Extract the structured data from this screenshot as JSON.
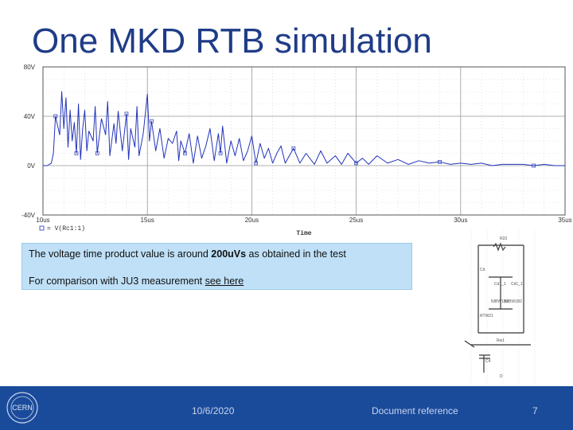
{
  "slide": {
    "title": "One MKD RTB simulation",
    "info": {
      "line1_prefix": "The voltage time product value is around ",
      "line1_bold": "200uVs",
      "line1_suffix": " as obtained in the test",
      "line2_prefix": "For comparison with JU3 measurement ",
      "line2_link": "see here"
    },
    "footer": {
      "logo_text": "CERN",
      "date": "10/6/2020",
      "document_reference": "Document reference",
      "page_number": "7"
    },
    "schematic": {
      "labels": [
        "R23",
        "Cd",
        "Cd1_1",
        "Cd1_1",
        "RTW21",
        "NIBW1B1",
        "NIBW1B2",
        "Rw1",
        "C4",
        "D"
      ]
    }
  },
  "chart_data": {
    "type": "line",
    "title": "",
    "xlabel": "Time",
    "ylabel": "",
    "x_unit": "us",
    "y_unit": "V",
    "xlim": [
      10,
      35
    ],
    "ylim": [
      -40,
      80
    ],
    "x_ticks": [
      "10us",
      "15us",
      "20us",
      "25us",
      "30us",
      "35us"
    ],
    "y_ticks": [
      "80V",
      "40V",
      "0V",
      "-40V"
    ],
    "legend": "V(Rc1:1)",
    "legend_position": "bottom-left",
    "grid": true,
    "line_color": "#2233bb",
    "series": [
      {
        "name": "V(Rc1:1)",
        "x": [
          10.0,
          10.2,
          10.4,
          10.5,
          10.6,
          10.8,
          10.9,
          11.0,
          11.1,
          11.2,
          11.3,
          11.4,
          11.5,
          11.6,
          11.7,
          11.8,
          11.9,
          12.0,
          12.1,
          12.2,
          12.4,
          12.5,
          12.6,
          12.8,
          13.0,
          13.1,
          13.2,
          13.4,
          13.5,
          13.6,
          13.8,
          14.0,
          14.1,
          14.2,
          14.4,
          14.5,
          14.6,
          14.8,
          15.0,
          15.1,
          15.2,
          15.4,
          15.6,
          15.8,
          16.0,
          16.2,
          16.4,
          16.5,
          16.6,
          16.8,
          17.0,
          17.2,
          17.4,
          17.6,
          17.8,
          18.0,
          18.2,
          18.4,
          18.5,
          18.6,
          18.8,
          19.0,
          19.2,
          19.4,
          19.6,
          19.8,
          20.0,
          20.2,
          20.4,
          20.6,
          20.8,
          21.0,
          21.2,
          21.4,
          21.6,
          21.8,
          22.0,
          22.3,
          22.6,
          23.0,
          23.3,
          23.6,
          24.0,
          24.3,
          24.6,
          25.0,
          25.3,
          25.6,
          26.0,
          26.5,
          27.0,
          27.5,
          28.0,
          28.5,
          29.0,
          29.5,
          30.0,
          30.5,
          31.0,
          31.5,
          32.0,
          32.5,
          33.0,
          33.5,
          34.0,
          34.5,
          35.0
        ],
        "y": [
          0,
          0,
          2,
          10,
          40,
          25,
          60,
          30,
          55,
          15,
          45,
          20,
          35,
          10,
          50,
          5,
          30,
          45,
          12,
          28,
          20,
          48,
          10,
          38,
          25,
          52,
          8,
          34,
          18,
          44,
          12,
          42,
          5,
          30,
          15,
          48,
          8,
          26,
          58,
          20,
          36,
          12,
          30,
          6,
          22,
          18,
          28,
          4,
          20,
          10,
          26,
          2,
          24,
          6,
          16,
          30,
          4,
          26,
          10,
          32,
          2,
          20,
          8,
          22,
          4,
          12,
          24,
          2,
          18,
          6,
          14,
          2,
          10,
          16,
          2,
          8,
          14,
          2,
          10,
          1,
          12,
          2,
          8,
          1,
          10,
          2,
          6,
          1,
          8,
          2,
          5,
          1,
          4,
          2,
          3,
          1,
          2,
          1,
          2,
          0,
          1,
          1,
          1,
          0,
          1,
          0,
          0
        ]
      }
    ]
  }
}
